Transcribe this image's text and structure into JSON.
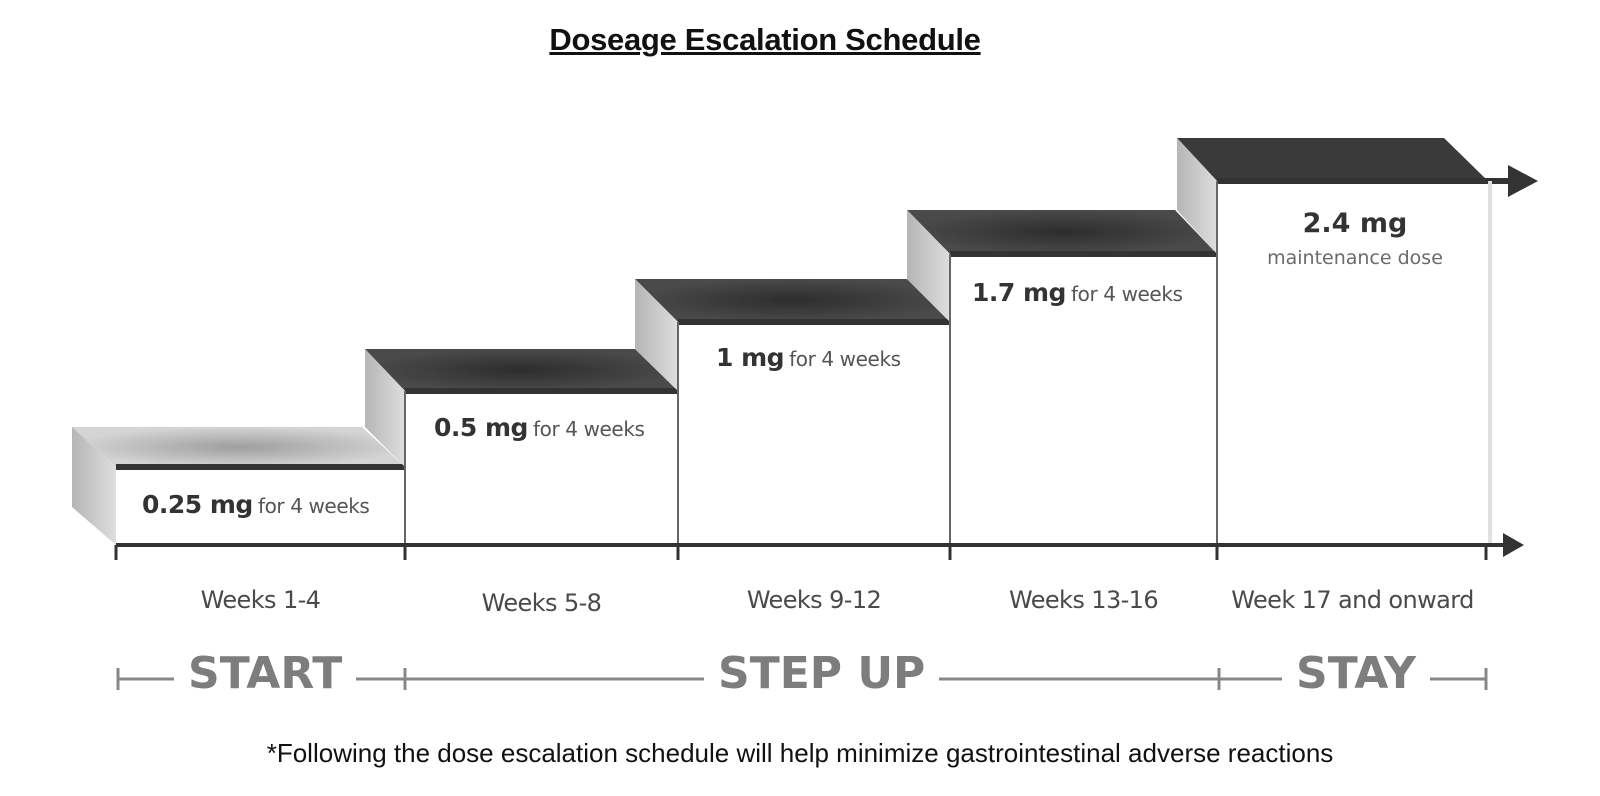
{
  "title": "Doseage Escalation Schedule",
  "steps": [
    {
      "dose": "0.25 mg",
      "duration": "for 4 weeks",
      "period": "Weeks 1-4"
    },
    {
      "dose": "0.5 mg",
      "duration": "for 4 weeks",
      "period": "Weeks 5-8"
    },
    {
      "dose": "1 mg",
      "duration": "for 4 weeks",
      "period": "Weeks 9-12"
    },
    {
      "dose": "1.7 mg",
      "duration": "for 4 weeks",
      "period": "Weeks 13-16"
    },
    {
      "dose": "2.4 mg",
      "duration": "maintenance dose",
      "period": "Week 17 and onward"
    }
  ],
  "phases": {
    "start": "START",
    "step_up": "STEP UP",
    "stay": "STAY"
  },
  "footnote": "*Following the dose escalation schedule will help minimize gastrointestinal adverse reactions",
  "colors": {
    "tread_dark": "#3f3f3f",
    "riser_light": "#c2c2c2",
    "axis": "#333333",
    "phase_text": "#7d7d7d"
  }
}
